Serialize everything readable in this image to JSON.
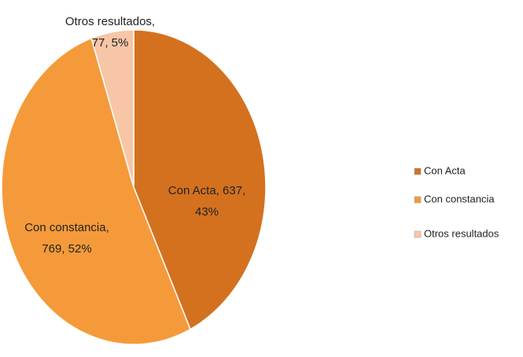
{
  "chart_data": {
    "type": "pie",
    "categories": [
      "Con Acta",
      "Con constancia",
      "Otros resultados"
    ],
    "values": [
      637,
      769,
      77
    ],
    "value_labels": [
      [
        "Con Acta, 637,",
        "43%"
      ],
      [
        "Con constancia,",
        "769, 52%"
      ],
      [
        "Otros resultados,",
        "77, 5%"
      ]
    ],
    "colors": [
      "#d4711f",
      "#f59a3a",
      "#f7c6a6"
    ],
    "legend": "right"
  }
}
